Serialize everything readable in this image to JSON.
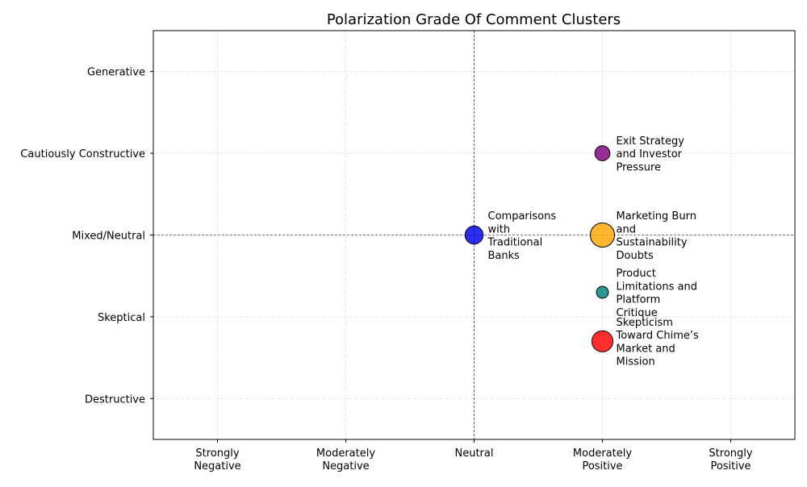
{
  "chart_data": {
    "type": "scatter",
    "title": "Polarization Grade Of Comment Clusters",
    "xlabel": "",
    "ylabel": "",
    "x_categories": [
      "Strongly Negative",
      "Moderately Negative",
      "Neutral",
      "Moderately Positive",
      "Strongly Positive"
    ],
    "y_categories": [
      "Destructive",
      "Skeptical",
      "Mixed/Neutral",
      "Cautiously Constructive",
      "Generative"
    ],
    "x_tick_lines": [
      [
        "Strongly",
        "Negative"
      ],
      [
        "Moderately",
        "Negative"
      ],
      [
        "Neutral"
      ],
      [
        "Moderately",
        "Positive"
      ],
      [
        "Strongly",
        "Positive"
      ]
    ],
    "xlim": [
      -2.5,
      2.5
    ],
    "ylim": [
      -2.5,
      2.5
    ],
    "x_values": [
      -2,
      -1,
      0,
      1,
      2
    ],
    "y_values": [
      -2,
      -1,
      0,
      1,
      2
    ],
    "grid": true,
    "reference_lines": {
      "x": 0,
      "y": 0
    },
    "points": [
      {
        "label": "Exit Strategy and Investor Pressure",
        "label_lines": [
          "Exit Strategy",
          "and Investor",
          "Pressure"
        ],
        "x": 1,
        "y": 1,
        "size": 2,
        "color": "#800080"
      },
      {
        "label": "Comparisons with Traditional Banks",
        "label_lines": [
          "Comparisons",
          "with",
          "Traditional",
          "Banks"
        ],
        "x": 0,
        "y": 0,
        "size": 3,
        "color": "#0000ee"
      },
      {
        "label": "Marketing Burn and Sustainability Doubts",
        "label_lines": [
          "Marketing Burn",
          "and",
          "Sustainability",
          "Doubts"
        ],
        "x": 1,
        "y": 0,
        "size": 5,
        "color": "#ffa500"
      },
      {
        "label": "Product Limitations and Platform Critique",
        "label_lines": [
          "Product",
          "Limitations and",
          "Platform",
          "Critique"
        ],
        "x": 1,
        "y": -0.7,
        "size": 1,
        "color": "#008080"
      },
      {
        "label": "Skepticism Toward Chime’s Market and Mission",
        "label_lines": [
          "Skepticism",
          "Toward Chime’s",
          "Market and",
          "Mission"
        ],
        "x": 1,
        "y": -1.3,
        "size": 4,
        "color": "#ff0000"
      }
    ]
  }
}
